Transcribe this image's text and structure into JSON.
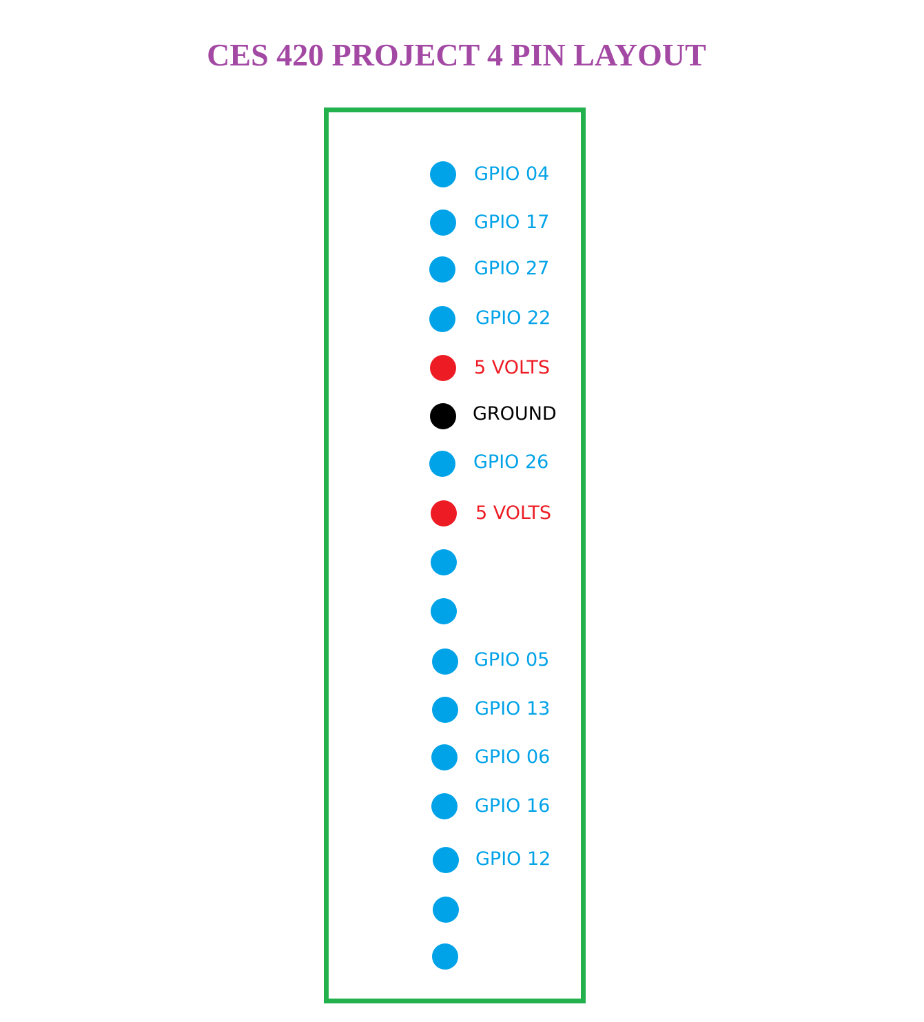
{
  "title": "CES 420 PROJECT 4 PIN LAYOUT",
  "colors": {
    "title": "#a349a4",
    "board_border": "#22b14c",
    "gpio": "#00a2e8",
    "power": "#ed1c24",
    "ground": "#000000"
  },
  "pins": [
    {
      "label": "GPIO 04",
      "kind": "gpio"
    },
    {
      "label": "GPIO 17",
      "kind": "gpio"
    },
    {
      "label": "GPIO 27",
      "kind": "gpio"
    },
    {
      "label": "GPIO 22",
      "kind": "gpio"
    },
    {
      "label": "5 VOLTS",
      "kind": "power"
    },
    {
      "label": "GROUND",
      "kind": "ground"
    },
    {
      "label": "GPIO 26",
      "kind": "gpio"
    },
    {
      "label": "5 VOLTS",
      "kind": "power"
    },
    {
      "label": "",
      "kind": "gpio"
    },
    {
      "label": "",
      "kind": "gpio"
    },
    {
      "label": "GPIO 05",
      "kind": "gpio"
    },
    {
      "label": "GPIO 13",
      "kind": "gpio"
    },
    {
      "label": "GPIO 06",
      "kind": "gpio"
    },
    {
      "label": "GPIO 16",
      "kind": "gpio"
    },
    {
      "label": "GPIO 12",
      "kind": "gpio"
    },
    {
      "label": "",
      "kind": "gpio"
    },
    {
      "label": "",
      "kind": "gpio"
    }
  ]
}
